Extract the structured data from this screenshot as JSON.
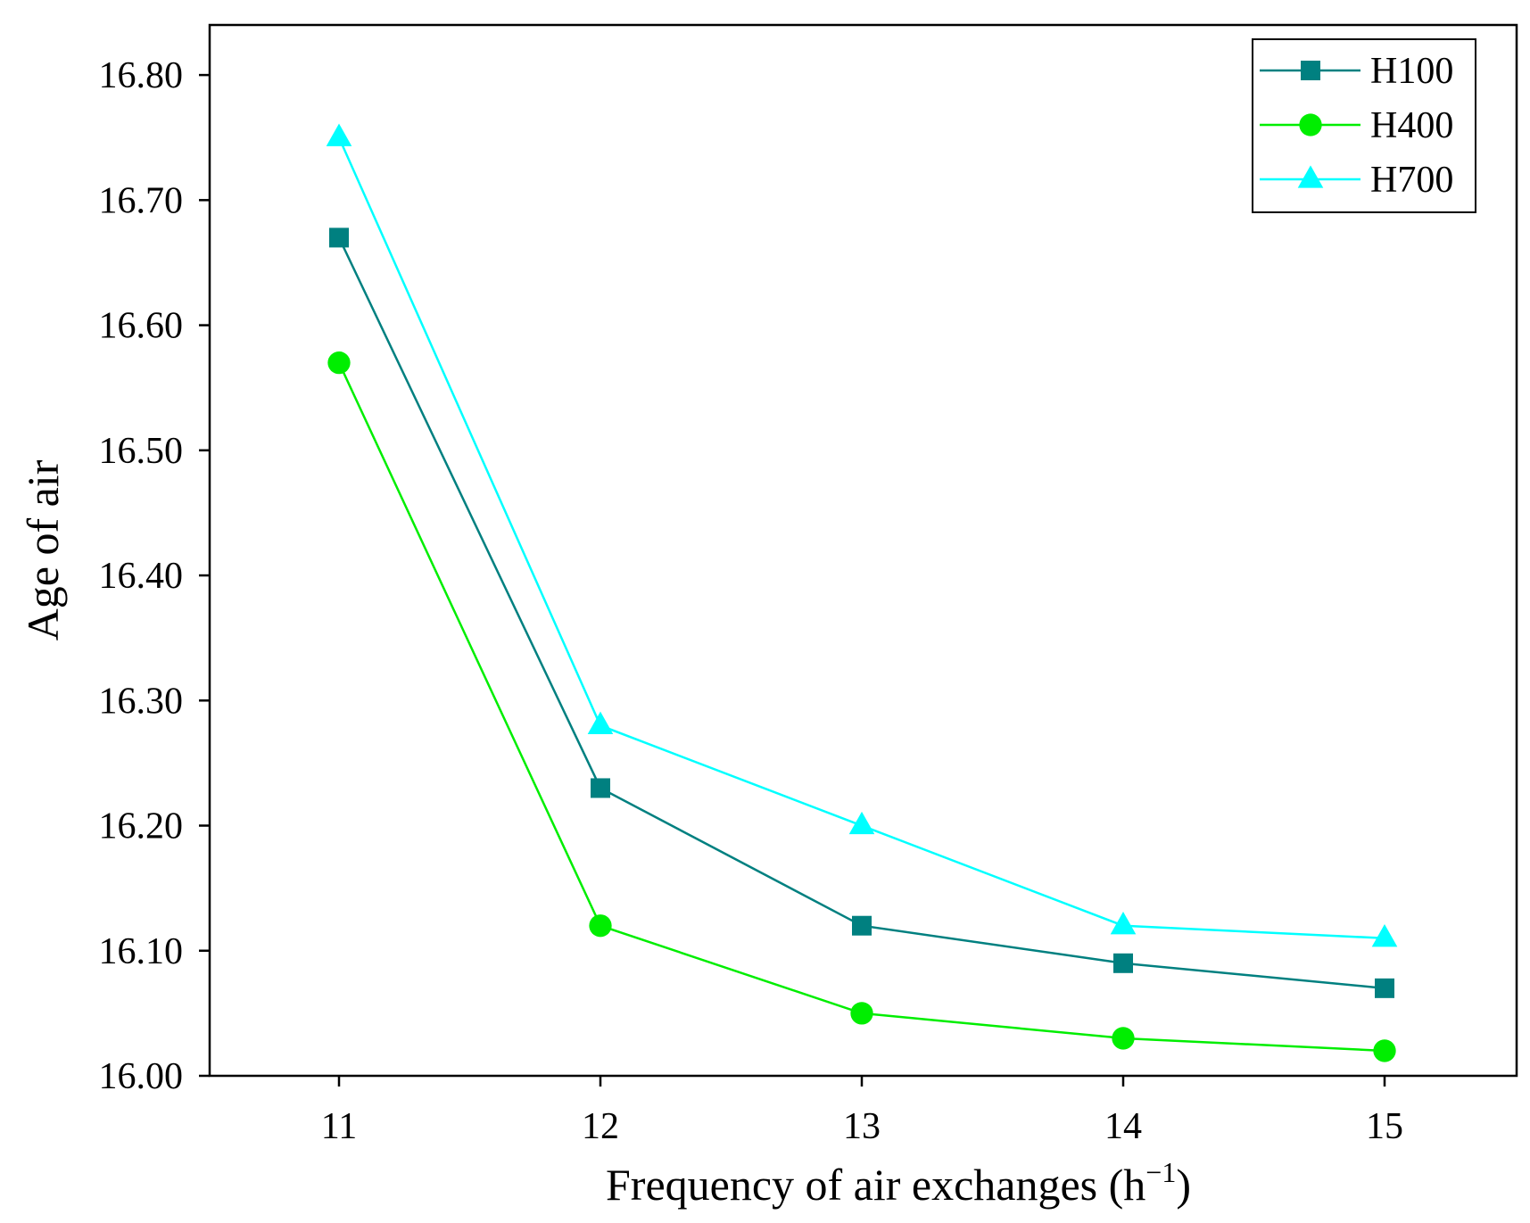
{
  "chart_data": {
    "type": "line",
    "title": "",
    "xlabel": "Frequency of air exchanges (h",
    "xlabel_sup": "−1",
    "xlabel_suffix": ")",
    "ylabel": "Age of air",
    "x": [
      11,
      12,
      13,
      14,
      15
    ],
    "x_tick_labels": [
      "11",
      "12",
      "13",
      "14",
      "15"
    ],
    "ylim": [
      16.0,
      16.84
    ],
    "y_ticks": [
      16.0,
      16.1,
      16.2,
      16.3,
      16.4,
      16.5,
      16.6,
      16.7,
      16.8
    ],
    "y_tick_labels": [
      "16.00",
      "16.10",
      "16.20",
      "16.30",
      "16.40",
      "16.50",
      "16.60",
      "16.70",
      "16.80"
    ],
    "grid": false,
    "legend_position": "top-right",
    "series": [
      {
        "name": "H100",
        "marker": "square",
        "color": "#008080",
        "values": [
          16.67,
          16.23,
          16.12,
          16.09,
          16.07
        ]
      },
      {
        "name": "H400",
        "marker": "circle",
        "color": "#00ee00",
        "values": [
          16.57,
          16.12,
          16.05,
          16.03,
          16.02
        ]
      },
      {
        "name": "H700",
        "marker": "triangle",
        "color": "#00ffff",
        "values": [
          16.75,
          16.28,
          16.2,
          16.12,
          16.11
        ]
      }
    ]
  }
}
